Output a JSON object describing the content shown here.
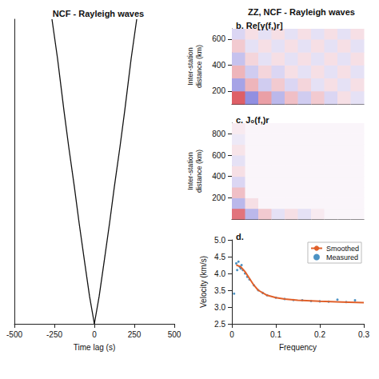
{
  "title": "ZZ, NCF - Rayleigh waves",
  "chart_data": [
    {
      "type": "line",
      "title": "NCF - Rayleigh waves",
      "x_label": "Time lag (s)",
      "xlim": [
        -500,
        500
      ],
      "xticks": [
        -500,
        -250,
        0,
        250,
        500
      ],
      "ylim": [
        0,
        100
      ],
      "tick_labels": "x",
      "grid": false,
      "series": [
        {
          "color": "#111111",
          "x": [
            -265,
            -230,
            -190,
            -160,
            -125,
            -95,
            -60,
            -30,
            0
          ],
          "values": [
            100,
            87,
            70,
            58,
            45,
            33,
            20,
            9,
            0
          ]
        },
        {
          "color": "#111111",
          "x": [
            0,
            30,
            60,
            95,
            125,
            160,
            190,
            230,
            265
          ],
          "values": [
            0,
            9,
            20,
            33,
            45,
            58,
            70,
            87,
            100
          ]
        }
      ]
    },
    {
      "type": "heatmap",
      "panel": "b.",
      "title": "Re[γ(f,)r]",
      "y_label": "Inter-station distance (km)",
      "xlim": [
        0,
        0.3
      ],
      "ylim": [
        100,
        680
      ],
      "yticks": [
        200,
        400,
        600
      ],
      "tick_labels": "y",
      "zlim": [
        -1,
        1
      ],
      "x": [
        0.015,
        0.045,
        0.075,
        0.105,
        0.135,
        0.165,
        0.195,
        0.225,
        0.255,
        0.285
      ],
      "y": [
        150,
        250,
        350,
        450,
        550,
        650
      ],
      "values": [
        [
          0.7,
          -0.5,
          0.4,
          -0.3,
          0.25,
          -0.2,
          0.2,
          -0.15,
          0.1,
          -0.1
        ],
        [
          -0.4,
          0.3,
          -0.2,
          0.2,
          -0.15,
          0.15,
          -0.1,
          0.1,
          -0.1,
          0.1
        ],
        [
          0.3,
          -0.2,
          0.15,
          -0.15,
          0.1,
          -0.1,
          0.1,
          -0.1,
          0.1,
          -0.1
        ],
        [
          -0.25,
          0.15,
          -0.1,
          0.1,
          -0.1,
          0.1,
          -0.1,
          0.1,
          -0.1,
          0.1
        ],
        [
          0.2,
          -0.1,
          0.1,
          -0.1,
          0.1,
          -0.1,
          0.1,
          -0.1,
          0.1,
          -0.1
        ],
        [
          -0.15,
          0.1,
          -0.1,
          0.1,
          -0.1,
          0.1,
          -0.1,
          0.1,
          -0.1,
          0.1
        ]
      ]
    },
    {
      "type": "heatmap",
      "panel": "c.",
      "title": "J₀(f,)r",
      "y_label": "Inter-station distance (km)",
      "xlim": [
        0,
        0.3
      ],
      "ylim": [
        0,
        900
      ],
      "yticks": [
        200,
        400,
        600,
        800
      ],
      "tick_labels": "y",
      "zlim": [
        -1,
        1
      ],
      "x": [
        0.015,
        0.045,
        0.075,
        0.105,
        0.135,
        0.165,
        0.195,
        0.225,
        0.255,
        0.285
      ],
      "y": [
        50,
        150,
        250,
        350,
        450,
        550,
        650,
        750,
        850
      ],
      "values": [
        [
          0.6,
          -0.3,
          0.2,
          -0.1,
          0.1,
          -0.1,
          0.05,
          0,
          0,
          0
        ],
        [
          -0.3,
          0.1,
          0,
          0,
          0,
          0,
          0,
          0,
          0,
          0
        ],
        [
          0.25,
          0,
          0,
          0,
          0,
          0,
          0,
          0,
          0,
          0
        ],
        [
          -0.15,
          0,
          0,
          0,
          0,
          0,
          0,
          0,
          0,
          0
        ],
        [
          0.1,
          0,
          0,
          0,
          0,
          0,
          0,
          0,
          0,
          0
        ],
        [
          -0.1,
          0,
          0,
          0,
          0,
          0,
          0,
          0,
          0,
          0
        ],
        [
          0.08,
          0,
          0,
          0,
          0,
          0,
          0,
          0,
          0,
          0
        ],
        [
          -0.06,
          0,
          0,
          0,
          0,
          0,
          0,
          0,
          0,
          0
        ],
        [
          0.05,
          0,
          0,
          0,
          0,
          0,
          0,
          0,
          0,
          0
        ]
      ]
    },
    {
      "type": "line",
      "panel": "d.",
      "x_label": "Frequency",
      "y_label": "Velocity (km/s)",
      "xlim": [
        0,
        0.3
      ],
      "xticks": [
        0,
        0.1,
        0.2,
        0.3
      ],
      "ylim": [
        2.5,
        5
      ],
      "yticks": [
        2.5,
        {
          "value": 3,
          "label": "3.0"
        },
        3.5,
        {
          "value": 4,
          "label": "4.0"
        },
        4.5,
        {
          "value": 5,
          "label": "5.0"
        }
      ],
      "grid": false,
      "legend": "top-right",
      "series": [
        {
          "name": "Smoothed",
          "type": "line",
          "color": "#e0602a",
          "line_style": "solid",
          "x": [
            0.01,
            0.02,
            0.03,
            0.04,
            0.05,
            0.06,
            0.08,
            0.1,
            0.12,
            0.15,
            0.2,
            0.25,
            0.3
          ],
          "values": [
            4.25,
            4.2,
            4.05,
            3.85,
            3.65,
            3.5,
            3.35,
            3.28,
            3.24,
            3.2,
            3.17,
            3.15,
            3.13
          ]
        },
        {
          "name": "Measured",
          "type": "scatter",
          "color": "#1f77b4",
          "marker": "circle",
          "x": [
            0.005,
            0.01,
            0.012,
            0.015,
            0.018,
            0.02,
            0.022,
            0.025,
            0.03,
            0.035,
            0.04,
            0.05,
            0.06,
            0.07,
            0.08,
            0.1,
            0.12,
            0.14,
            0.16,
            0.18,
            0.2,
            0.22,
            0.24,
            0.26,
            0.28
          ],
          "values": [
            3.4,
            4.3,
            4.1,
            4.35,
            4.2,
            4.15,
            4.25,
            4.1,
            4.0,
            3.9,
            3.82,
            3.65,
            3.5,
            3.42,
            3.35,
            3.28,
            3.24,
            3.21,
            3.2,
            3.18,
            3.17,
            3.16,
            3.22,
            3.15,
            3.2
          ]
        }
      ]
    }
  ]
}
